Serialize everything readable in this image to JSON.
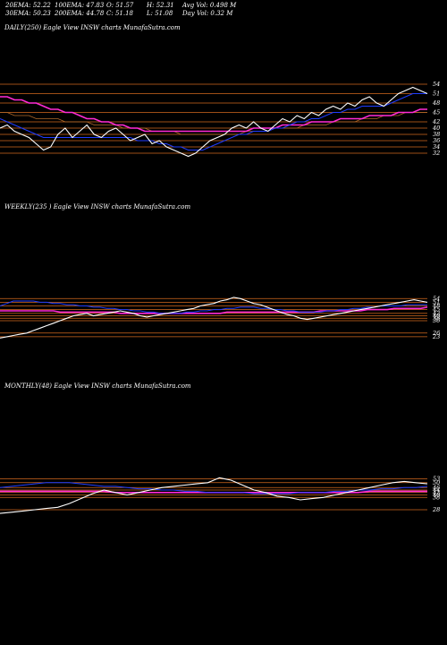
{
  "header": {
    "row1": [
      {
        "label": "20EMA: 52.22"
      },
      {
        "label": "100EMA: 47.83"
      },
      {
        "label": "O: 51.57"
      },
      {
        "label": "H: 52.31"
      },
      {
        "label": "Avg Vol: 0.498  M"
      }
    ],
    "row2": [
      {
        "label": "30EMA: 50.23"
      },
      {
        "label": "200EMA: 44.78"
      },
      {
        "label": "C: 51.18"
      },
      {
        "label": "L: 51.08"
      },
      {
        "label": "Day Vol: 0.32  M"
      }
    ]
  },
  "colors": {
    "price": "#ffffff",
    "ema_fast": "#1f3cff",
    "ema_mid": "#ff2bd6",
    "ema_slow": "#b06a2a",
    "band": "#d2691e"
  },
  "chart_data": [
    {
      "type": "line",
      "title": "DAILY(250) Eagle   View  INSW charts MunafaSutra.com",
      "ylim": [
        28,
        58
      ],
      "levels": [
        54,
        51,
        48,
        45,
        42,
        40,
        38,
        36,
        34,
        32
      ],
      "series": [
        {
          "values": [
            40,
            41,
            39,
            38,
            37,
            35,
            33,
            34,
            38,
            40,
            37,
            39,
            41,
            38,
            37,
            39,
            40,
            38,
            36,
            37,
            38,
            35,
            36,
            34,
            33,
            32,
            31,
            32,
            34,
            36,
            37,
            38,
            40,
            41,
            40,
            42,
            40,
            39,
            41,
            43,
            42,
            44,
            43,
            45,
            44,
            46,
            47,
            46,
            48,
            47,
            49,
            50,
            48,
            47,
            49,
            51,
            52,
            53,
            52,
            51
          ]
        },
        {
          "values": [
            43,
            42,
            41,
            40,
            39,
            38,
            37,
            37,
            37,
            37,
            37,
            37,
            37,
            37,
            37,
            37,
            37,
            37,
            37,
            36,
            36,
            36,
            35,
            35,
            34,
            34,
            33,
            33,
            33,
            34,
            35,
            36,
            37,
            38,
            38,
            39,
            39,
            39,
            40,
            40,
            41,
            42,
            42,
            43,
            43,
            44,
            45,
            45,
            46,
            46,
            47,
            47,
            47,
            47,
            48,
            49,
            50,
            51,
            51,
            51
          ]
        },
        {
          "values": [
            50,
            50,
            49,
            49,
            48,
            48,
            47,
            46,
            46,
            45,
            45,
            44,
            43,
            43,
            42,
            42,
            41,
            41,
            40,
            40,
            39,
            39,
            39,
            39,
            39,
            39,
            39,
            39,
            39,
            39,
            39,
            39,
            39,
            39,
            39,
            40,
            40,
            40,
            40,
            41,
            41,
            41,
            41,
            42,
            42,
            42,
            42,
            43,
            43,
            43,
            43,
            44,
            44,
            44,
            44,
            45,
            45,
            45,
            46,
            46
          ]
        },
        {
          "values": [
            45,
            45,
            44,
            44,
            44,
            43,
            43,
            43,
            43,
            42,
            42,
            42,
            42,
            41,
            41,
            41,
            41,
            40,
            40,
            40,
            40,
            39,
            39,
            39,
            39,
            38,
            38,
            38,
            38,
            38,
            38,
            38,
            38,
            38,
            39,
            39,
            39,
            39,
            40,
            40,
            40,
            40,
            41,
            41,
            41,
            41,
            42,
            42,
            42,
            42,
            43,
            43,
            43,
            44,
            44,
            44,
            45,
            45,
            45,
            45
          ]
        }
      ]
    },
    {
      "type": "line",
      "title": "WEEKLY(235                                   ) Eagle   View  INSW charts MunafaSutra.com",
      "ylim": [
        20,
        60
      ],
      "levels": [
        54,
        51,
        48,
        45,
        42,
        40,
        38,
        36,
        26,
        23
      ],
      "series": [
        {
          "values": [
            22,
            23,
            24,
            25,
            26,
            28,
            30,
            32,
            34,
            36,
            38,
            40,
            41,
            42,
            40,
            41,
            42,
            43,
            44,
            43,
            42,
            40,
            39,
            40,
            41,
            42,
            43,
            44,
            45,
            46,
            48,
            49,
            50,
            52,
            53,
            55,
            54,
            52,
            50,
            49,
            47,
            45,
            43,
            41,
            40,
            38,
            37,
            38,
            39,
            40,
            41,
            42,
            43,
            44,
            45,
            46,
            47,
            48,
            49,
            50,
            51,
            52,
            53,
            52,
            51
          ]
        },
        {
          "values": [
            48,
            50,
            52,
            52,
            52,
            52,
            51,
            51,
            50,
            50,
            49,
            49,
            48,
            48,
            47,
            47,
            46,
            46,
            45,
            45,
            44,
            44,
            43,
            43,
            42,
            42,
            42,
            42,
            43,
            43,
            44,
            44,
            45,
            45,
            46,
            46,
            47,
            47,
            47,
            46,
            46,
            45,
            45,
            44,
            44,
            43,
            43,
            43,
            43,
            44,
            44,
            45,
            45,
            46,
            46,
            47,
            47,
            48,
            48,
            48,
            48,
            49,
            49,
            49,
            49
          ]
        },
        {
          "values": [
            44,
            44,
            44,
            44,
            44,
            44,
            44,
            44,
            44,
            43,
            43,
            43,
            43,
            43,
            43,
            43,
            43,
            43,
            42,
            42,
            42,
            42,
            42,
            42,
            42,
            42,
            42,
            42,
            42,
            42,
            42,
            42,
            42,
            42,
            43,
            43,
            43,
            43,
            43,
            43,
            43,
            43,
            43,
            43,
            43,
            43,
            43,
            43,
            44,
            44,
            44,
            44,
            44,
            44,
            44,
            45,
            45,
            45,
            45,
            46,
            46,
            46,
            46,
            46,
            47
          ]
        }
      ]
    },
    {
      "type": "line",
      "title": "MONTHLY(48) Eagle   View  INSW charts MunafaSutra.com",
      "ylim": [
        20,
        60
      ],
      "levels": [
        53,
        50,
        46,
        44,
        42,
        40,
        38,
        28
      ],
      "series": [
        {
          "values": [
            25,
            26,
            27,
            28,
            29,
            30,
            33,
            37,
            41,
            44,
            42,
            40,
            42,
            44,
            46,
            47,
            48,
            49,
            50,
            54,
            52,
            48,
            44,
            42,
            39,
            38,
            36,
            37,
            38,
            40,
            42,
            44,
            46,
            48,
            50,
            51,
            50,
            49
          ]
        },
        {
          "values": [
            46,
            47,
            48,
            49,
            50,
            50,
            50,
            49,
            48,
            47,
            47,
            46,
            45,
            45,
            44,
            44,
            43,
            43,
            42,
            42,
            42,
            42,
            41,
            41,
            41,
            41,
            42,
            42,
            42,
            43,
            43,
            44,
            44,
            45,
            45,
            46,
            46,
            47
          ]
        },
        {
          "values": [
            43,
            43,
            43,
            43,
            43,
            43,
            43,
            43,
            43,
            43,
            42,
            42,
            42,
            42,
            42,
            42,
            42,
            42,
            42,
            42,
            42,
            42,
            42,
            42,
            42,
            42,
            42,
            42,
            42,
            42,
            42,
            42,
            43,
            43,
            43,
            43,
            43,
            43
          ]
        }
      ]
    }
  ]
}
